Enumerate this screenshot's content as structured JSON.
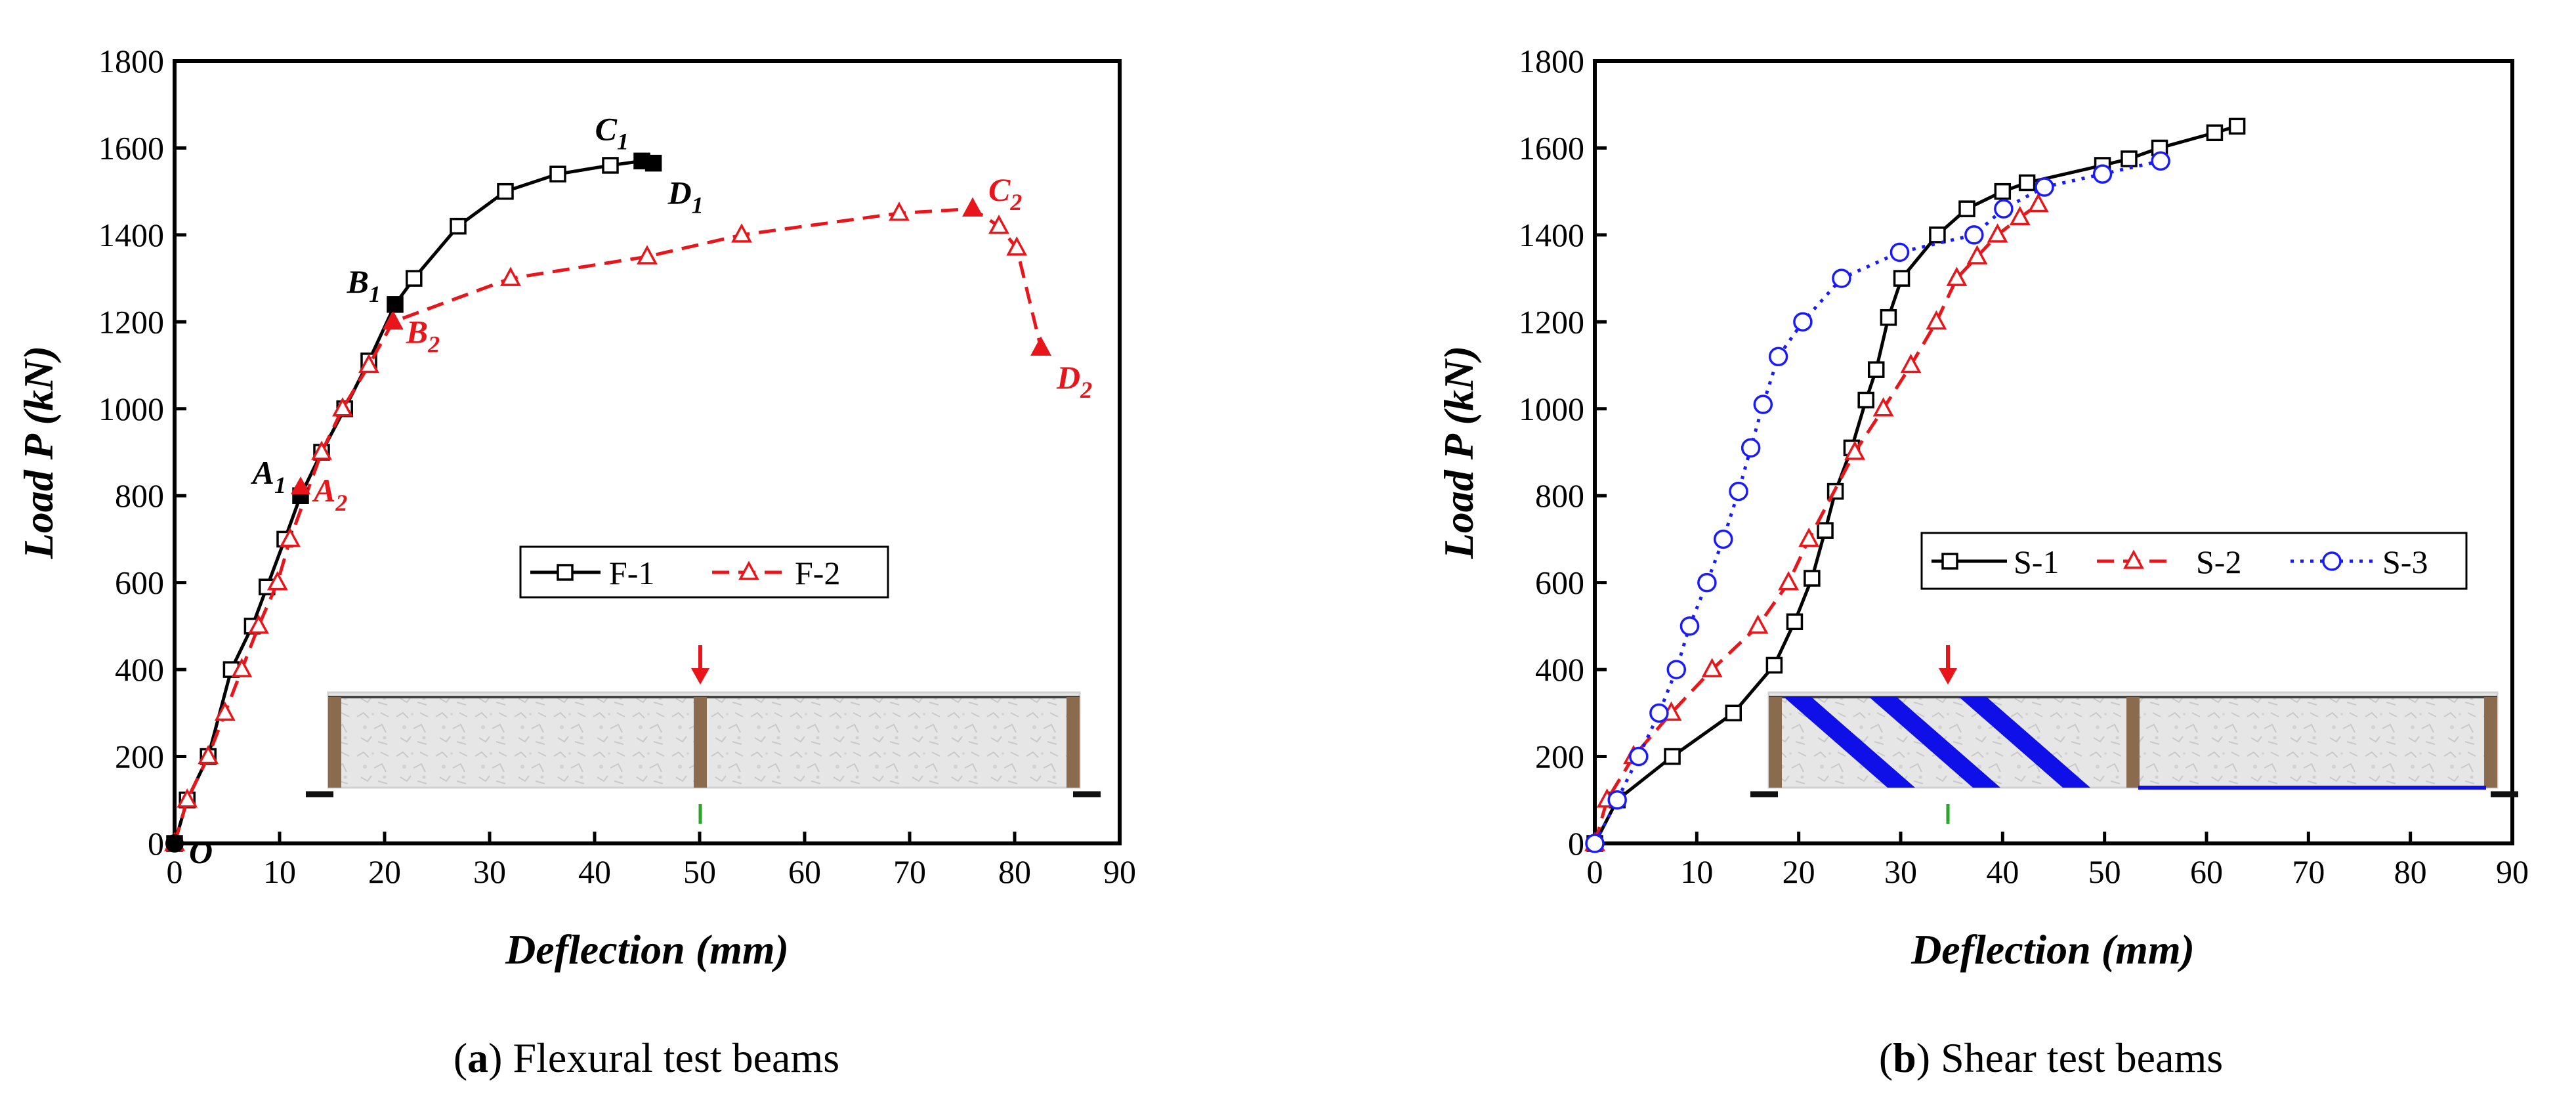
{
  "captions": {
    "a_letter": "a",
    "a_text": " Flexural test beams",
    "b_letter": "b",
    "b_text": " Shear test beams"
  },
  "colors": {
    "f1": "#000000",
    "f2": "#e8161b",
    "s1": "#000000",
    "s2": "#e8161b",
    "s3": "#1a1aff",
    "beam_fill": "#e4e4e4",
    "beam_support": "#8b6b4e",
    "cfrp": "#0f10e8"
  },
  "chart_data": [
    {
      "type": "line",
      "id": "a",
      "xlabel": "Deflection (mm)",
      "ylabel": "Load P (kN)",
      "xlim": [
        0,
        90
      ],
      "ylim": [
        0,
        1800
      ],
      "xticks": [
        0,
        10,
        20,
        30,
        40,
        50,
        60,
        70,
        80,
        90
      ],
      "yticks": [
        0,
        200,
        400,
        600,
        800,
        1000,
        1200,
        1400,
        1600,
        1800
      ],
      "legend_position": "center-right",
      "series": [
        {
          "name": "F-1",
          "line": "solid",
          "marker": "square",
          "x": [
            0,
            1.2,
            3.2,
            5.4,
            7.4,
            8.8,
            10.5,
            12,
            14,
            16.2,
            18.5,
            21,
            22.8,
            27,
            31.5,
            36.5,
            41.5,
            44.5,
            45.6
          ],
          "y": [
            0,
            100,
            200,
            400,
            500,
            590,
            700,
            800,
            900,
            1000,
            1110,
            1240,
            1300,
            1420,
            1500,
            1540,
            1560,
            1570,
            1565
          ]
        },
        {
          "name": "F-2",
          "line": "dashed",
          "marker": "triangle",
          "x": [
            0,
            1.2,
            3.2,
            4.8,
            6.4,
            8,
            9.8,
            11,
            14,
            16,
            18.5,
            20.8,
            32,
            45,
            54,
            69,
            76,
            78.5,
            80.2,
            82.5
          ],
          "y": [
            0,
            100,
            200,
            300,
            400,
            500,
            600,
            700,
            900,
            1000,
            1100,
            1200,
            1300,
            1350,
            1400,
            1450,
            1460,
            1420,
            1370,
            1140
          ]
        }
      ],
      "key_points": [
        {
          "label": "O",
          "x": 0,
          "y": 0,
          "marker": "circle",
          "series": "F-1"
        },
        {
          "label": "A1",
          "base": "A",
          "sub": "1",
          "x": 12,
          "y": 800,
          "series": "F-1"
        },
        {
          "label": "B1",
          "base": "B",
          "sub": "1",
          "x": 21,
          "y": 1240,
          "series": "F-1"
        },
        {
          "label": "C1",
          "base": "C",
          "sub": "1",
          "x": 44.5,
          "y": 1570,
          "series": "F-1"
        },
        {
          "label": "D1",
          "base": "D",
          "sub": "1",
          "x": 45.6,
          "y": 1565,
          "series": "F-1"
        },
        {
          "label": "A2",
          "base": "A",
          "sub": "2",
          "x": 12,
          "y": 820,
          "series": "F-2"
        },
        {
          "label": "B2",
          "base": "B",
          "sub": "2",
          "x": 20.8,
          "y": 1200,
          "series": "F-2"
        },
        {
          "label": "C2",
          "base": "C",
          "sub": "2",
          "x": 76,
          "y": 1460,
          "series": "F-2"
        },
        {
          "label": "D2",
          "base": "D",
          "sub": "2",
          "x": 82.5,
          "y": 1140,
          "series": "F-2"
        }
      ]
    },
    {
      "type": "line",
      "id": "b",
      "xlabel": "Deflection (mm)",
      "ylabel": "Load P (kN)",
      "xlim": [
        0,
        90
      ],
      "ylim": [
        0,
        1800
      ],
      "xticks": [
        0,
        10,
        20,
        30,
        40,
        50,
        60,
        70,
        80,
        90
      ],
      "yticks": [
        0,
        200,
        400,
        600,
        800,
        1000,
        1200,
        1400,
        1600,
        1800
      ],
      "legend_position": "center-right",
      "series": [
        {
          "name": "S-1",
          "line": "solid",
          "marker": "square",
          "x": [
            0,
            2.2,
            7.6,
            13.6,
            17.6,
            19.6,
            21.3,
            22.6,
            23.6,
            25.2,
            26.6,
            27.6,
            28.8,
            30.1,
            33.6,
            36.5,
            40,
            42.4,
            49.8,
            52.4,
            55.4,
            60.8,
            63
          ],
          "y": [
            0,
            100,
            200,
            300,
            410,
            510,
            610,
            720,
            810,
            910,
            1020,
            1090,
            1210,
            1300,
            1400,
            1460,
            1500,
            1520,
            1560,
            1575,
            1600,
            1635,
            1650
          ]
        },
        {
          "name": "S-2",
          "line": "dashed",
          "marker": "triangle",
          "x": [
            0,
            1.2,
            3.8,
            7.5,
            11.5,
            16,
            19,
            21,
            25.5,
            28.3,
            31,
            33.5,
            35.5,
            37.5,
            39.5,
            41.7,
            43.5
          ],
          "y": [
            0,
            100,
            200,
            300,
            400,
            500,
            600,
            700,
            900,
            1000,
            1100,
            1200,
            1300,
            1350,
            1400,
            1440,
            1470
          ]
        },
        {
          "name": "S-3",
          "line": "dotted",
          "marker": "circle",
          "x": [
            0,
            2.2,
            4.3,
            6.3,
            8,
            9.3,
            11,
            12.6,
            14.1,
            15.3,
            16.5,
            18,
            20.4,
            24.2,
            29.9,
            37.2,
            40.1,
            44.1,
            49.8,
            55.5
          ],
          "y": [
            0,
            100,
            200,
            300,
            400,
            500,
            600,
            700,
            810,
            910,
            1010,
            1120,
            1200,
            1300,
            1360,
            1400,
            1460,
            1510,
            1540,
            1570
          ]
        }
      ]
    }
  ]
}
